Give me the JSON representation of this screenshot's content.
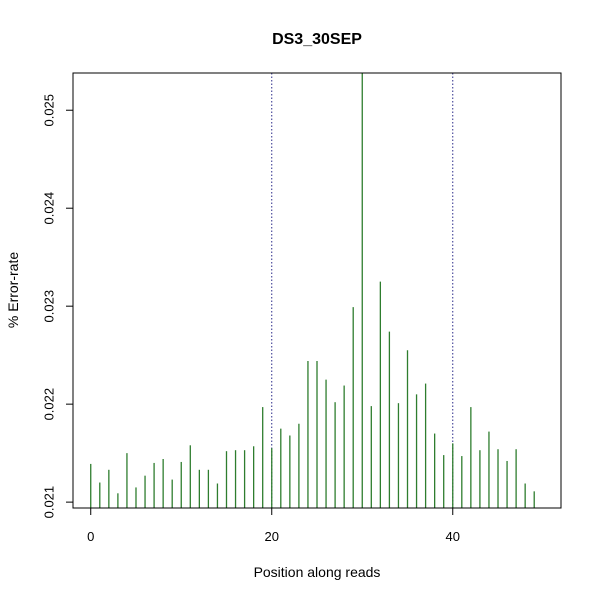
{
  "chart_data": {
    "type": "bar",
    "title": "DS3_30SEP",
    "xlabel": "Position along reads",
    "ylabel": "% Error-rate",
    "xlim": [
      -1.96,
      51.96
    ],
    "ylim": [
      0.02094,
      0.02538
    ],
    "x_ticks": [
      0,
      20,
      40
    ],
    "y_ticks": [
      0.021,
      0.022,
      0.023,
      0.024,
      0.025
    ],
    "x_tick_labels": [
      "0",
      "20",
      "40"
    ],
    "y_tick_labels": [
      "0.021",
      "0.022",
      "0.023",
      "0.024",
      "0.025"
    ],
    "vlines": [
      20,
      40
    ],
    "grid": false,
    "legend": "none",
    "colors": {
      "bars": "#2e7d2e",
      "vlines": "#2b2b8a",
      "frame": "#000000"
    },
    "x": [
      0,
      1,
      2,
      3,
      4,
      5,
      6,
      7,
      8,
      9,
      10,
      11,
      12,
      13,
      14,
      15,
      16,
      17,
      18,
      19,
      20,
      21,
      22,
      23,
      24,
      25,
      26,
      27,
      28,
      29,
      30,
      31,
      32,
      33,
      34,
      35,
      36,
      37,
      38,
      39,
      40,
      41,
      42,
      43,
      44,
      45,
      46,
      47,
      48,
      49
    ],
    "values": [
      0.02139,
      0.0212,
      0.02133,
      0.02109,
      0.0215,
      0.02115,
      0.02127,
      0.0214,
      0.02144,
      0.02123,
      0.02141,
      0.02158,
      0.02133,
      0.02133,
      0.02119,
      0.02152,
      0.02153,
      0.02153,
      0.02157,
      0.02197,
      0.02155,
      0.02175,
      0.02168,
      0.0218,
      0.02244,
      0.02244,
      0.02225,
      0.02202,
      0.02219,
      0.02299,
      0.02538,
      0.02198,
      0.02325,
      0.02274,
      0.02201,
      0.02255,
      0.0221,
      0.02221,
      0.0217,
      0.02148,
      0.0216,
      0.02147,
      0.02197,
      0.02153,
      0.02172,
      0.02154,
      0.02142,
      0.02154,
      0.02119,
      0.02111
    ]
  }
}
